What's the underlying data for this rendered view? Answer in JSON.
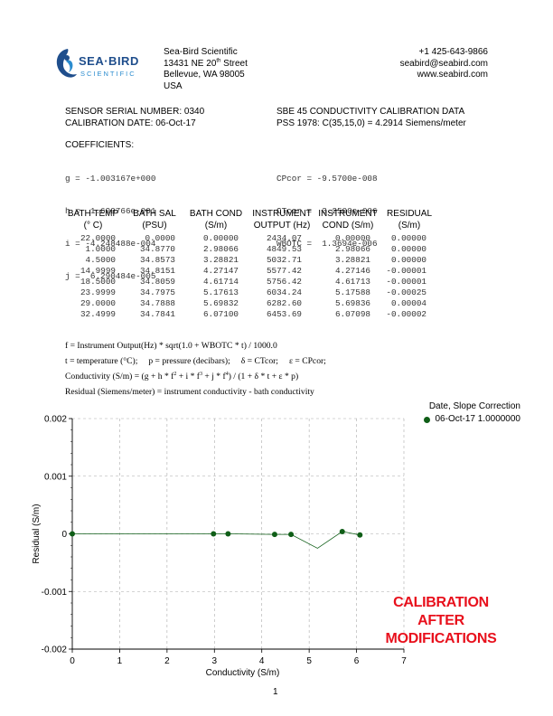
{
  "company": {
    "logo_text": "SEA·BIRD",
    "logo_sub": "SCIENTIFIC",
    "name": "Sea-Bird Scientific",
    "street_pre": "13431 NE 20",
    "street_sup": "th",
    "street_post": " Street",
    "city": "Bellevue, WA  98005",
    "country": "USA",
    "phone": "+1 425-643-9866",
    "email": "seabird@seabird.com",
    "web": "www.seabird.com"
  },
  "sensor": {
    "serial": "SENSOR SERIAL NUMBER: 0340",
    "cal_date": "CALIBRATION DATE: 06-Oct-17",
    "title": "SBE 45 CONDUCTIVITY CALIBRATION DATA",
    "pss": "PSS 1978: C(35,15,0) = 4.2914 Siemens/meter"
  },
  "coefficients": {
    "heading": "COEFFICIENTS:",
    "left": [
      "g = -1.003167e+000",
      "h =  1.699766e-001",
      "i = -4.248488e-004",
      "j =  6.290484e-005"
    ],
    "right": [
      "CPcor = -9.5700e-008",
      "CTcor =  3.2500e-006",
      "WBOTC =  1.3694e-006"
    ]
  },
  "table": {
    "headers": [
      [
        "BATH TEMP",
        "(° C)"
      ],
      [
        "BATH SAL",
        "(PSU)"
      ],
      [
        "BATH COND",
        "(S/m)"
      ],
      [
        "INSTRUMENT",
        "OUTPUT (Hz)"
      ],
      [
        "INSTRUMENT",
        "COND (S/m)"
      ],
      [
        "RESIDUAL",
        "(S/m)"
      ]
    ],
    "rows": [
      [
        "22.0000",
        "0.0000",
        "0.00000",
        "2434.07",
        "0.00000",
        "0.00000"
      ],
      [
        "1.0000",
        "34.8770",
        "2.98066",
        "4849.53",
        "2.98066",
        "0.00000"
      ],
      [
        "4.5000",
        "34.8573",
        "3.28821",
        "5032.71",
        "3.28821",
        "0.00000"
      ],
      [
        "14.9999",
        "34.8151",
        "4.27147",
        "5577.42",
        "4.27146",
        "-0.00001"
      ],
      [
        "18.5000",
        "34.8059",
        "4.61714",
        "5756.42",
        "4.61713",
        "-0.00001"
      ],
      [
        "23.9999",
        "34.7975",
        "5.17613",
        "6034.24",
        "5.17588",
        "-0.00025"
      ],
      [
        "29.0000",
        "34.7888",
        "5.69832",
        "6282.60",
        "5.69836",
        "0.00004"
      ],
      [
        "32.4999",
        "34.7841",
        "6.07100",
        "6453.69",
        "6.07098",
        "-0.00002"
      ]
    ]
  },
  "formulas": {
    "f1": "f = Instrument Output(Hz) * sqrt(1.0 + WBOTC * t) / 1000.0",
    "f2": "t = temperature (°C);     p = pressure (decibars);     δ = CTcor;     ε = CPcor;",
    "f3_a": "Conductivity (S/m) = (g + h * f",
    "f3_b": " + i * f",
    "f3_c": " + j * f",
    "f3_d": ") / (1 + δ * t + ε * p)",
    "sup2": "2",
    "sup3": "3",
    "sup4": "4",
    "f4": "Residual (Siemens/meter) = instrument conductivity - bath conductivity"
  },
  "legend": {
    "title": "Date, Slope Correction",
    "entry": "06-Oct-17 1.0000000",
    "color": "#0f5e17"
  },
  "stamp": [
    "CALIBRATION",
    "AFTER",
    "MODIFICATIONS"
  ],
  "page_number": "1",
  "chart_data": {
    "type": "line",
    "xlabel": "Conductivity (S/m)",
    "ylabel": "Residual (S/m)",
    "xlim": [
      0,
      7
    ],
    "ylim": [
      -0.002,
      0.002
    ],
    "xticks": [
      0,
      1,
      2,
      3,
      4,
      5,
      6,
      7
    ],
    "xtick_labels": [
      "0",
      "1",
      "2",
      "3",
      "4",
      "5",
      "6",
      "7"
    ],
    "yticks": [
      0.002,
      0.001,
      0,
      -0.001,
      -0.002
    ],
    "ytick_labels": [
      "0.002",
      "0.001",
      "0",
      "-0.001",
      "-0.002"
    ],
    "grid": true,
    "series": [
      {
        "name": "06-Oct-17 1.0000000",
        "color": "#0f5e17",
        "x": [
          0.0,
          2.98066,
          3.28821,
          4.27147,
          4.61714,
          5.17613,
          5.69832,
          6.071
        ],
        "y": [
          0.0,
          0.0,
          0.0,
          -1e-05,
          -1e-05,
          -0.00025,
          4e-05,
          -2e-05
        ],
        "markers": [
          true,
          true,
          true,
          true,
          true,
          false,
          true,
          true
        ]
      }
    ]
  }
}
